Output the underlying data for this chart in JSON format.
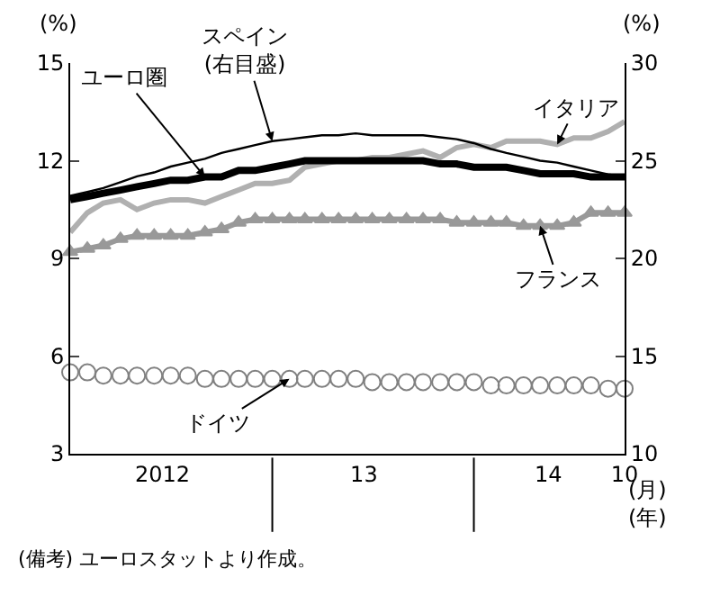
{
  "chart_data": {
    "type": "line",
    "ylabel": "(%)",
    "y2label": "(%)",
    "xlabel": "(月)\n(年)",
    "x": [
      "2012-01",
      "2012-02",
      "2012-03",
      "2012-04",
      "2012-05",
      "2012-06",
      "2012-07",
      "2012-08",
      "2012-09",
      "2012-10",
      "2012-11",
      "2012-12",
      "2013-01",
      "2013-02",
      "2013-03",
      "2013-04",
      "2013-05",
      "2013-06",
      "2013-07",
      "2013-08",
      "2013-09",
      "2013-10",
      "2013-11",
      "2013-12",
      "2014-01",
      "2014-02",
      "2014-03",
      "2014-04",
      "2014-05",
      "2014-06",
      "2014-07",
      "2014-08",
      "2014-09",
      "2014-10"
    ],
    "series": [
      {
        "color": "#b0b0b0",
        "line_style": "solid",
        "marker": "none",
        "values": [
          9.8,
          10.4,
          10.7,
          10.8,
          10.5,
          10.7,
          10.8,
          10.8,
          10.7,
          10.9,
          11.1,
          11.3,
          11.3,
          11.4,
          11.8,
          11.9,
          12.0,
          12.0,
          12.1,
          12.1,
          12.2,
          12.3,
          12.1,
          12.4,
          12.5,
          12.4,
          12.6,
          12.6,
          12.6,
          12.5,
          12.7,
          12.7,
          12.9,
          13.2
        ]
      },
      {
        "color": "#000000",
        "line_style": "solid",
        "marker": "none",
        "axis": "y2",
        "values": [
          23.2,
          23.4,
          23.6,
          23.9,
          24.2,
          24.4,
          24.7,
          24.9,
          25.1,
          25.4,
          25.6,
          25.8,
          26.0,
          26.1,
          26.2,
          26.3,
          26.3,
          26.4,
          26.3,
          26.3,
          26.3,
          26.3,
          26.2,
          26.1,
          25.9,
          25.6,
          25.4,
          25.2,
          25.0,
          24.9,
          24.7,
          24.5,
          24.3,
          24.2
        ]
      },
      {
        "color": "#000000",
        "line_style": "solid",
        "marker": "none",
        "values": [
          10.8,
          10.9,
          11.0,
          11.1,
          11.2,
          11.3,
          11.4,
          11.4,
          11.5,
          11.5,
          11.7,
          11.7,
          11.8,
          11.9,
          12.0,
          12.0,
          12.0,
          12.0,
          12.0,
          12.0,
          12.0,
          12.0,
          11.9,
          11.9,
          11.8,
          11.8,
          11.8,
          11.7,
          11.6,
          11.6,
          11.6,
          11.5,
          11.5,
          11.5
        ]
      },
      {
        "color": "#999999",
        "line_style": "solid",
        "marker": "triangle",
        "values": [
          9.2,
          9.3,
          9.4,
          9.6,
          9.7,
          9.7,
          9.7,
          9.7,
          9.8,
          9.9,
          10.1,
          10.2,
          10.2,
          10.2,
          10.2,
          10.2,
          10.2,
          10.2,
          10.2,
          10.2,
          10.2,
          10.2,
          10.2,
          10.1,
          10.1,
          10.1,
          10.1,
          10.0,
          10.0,
          10.0,
          10.1,
          10.4,
          10.4,
          10.4
        ]
      },
      {
        "type": "scatter",
        "color": "#808080",
        "marker": "circle",
        "values": [
          5.5,
          5.5,
          5.4,
          5.4,
          5.4,
          5.4,
          5.4,
          5.4,
          5.3,
          5.3,
          5.3,
          5.3,
          5.3,
          5.3,
          5.3,
          5.3,
          5.3,
          5.3,
          5.2,
          5.2,
          5.2,
          5.2,
          5.2,
          5.2,
          5.2,
          5.1,
          5.1,
          5.1,
          5.1,
          5.1,
          5.1,
          5.1,
          5.0,
          5.0
        ]
      }
    ],
    "xlim": [
      "2012-01-01",
      "2014-10-01"
    ],
    "xticks": [
      {
        "value": "2012-06-16",
        "label": "2012"
      },
      {
        "value": "2013-06-16",
        "label": "13"
      },
      {
        "value": "2014-05-16",
        "label": "14"
      },
      {
        "value": "2014-10-01",
        "label": "10"
      }
    ],
    "ylim": [
      3,
      15
    ],
    "yticks": [
      3,
      6,
      9,
      12,
      15
    ],
    "y2lim": [
      10,
      30
    ],
    "y2ticks": [
      10,
      15,
      20,
      25,
      30
    ],
    "annotations": [
      {
        "text": "ユーロ圏",
        "x": "2012-09",
        "y": 11.5
      },
      {
        "text": "スペイン\n(右目盛)",
        "x": "2013-01",
        "y": 12.6
      },
      {
        "text": "イタリア",
        "x": "2014-06",
        "y": 12.5
      },
      {
        "text": "フランス",
        "x": "2014-05",
        "y": 10.0
      },
      {
        "text": "ドイツ",
        "x": "2013-02",
        "y": 5.3
      },
      "(備考) ユーロスタットより作成。"
    ]
  }
}
